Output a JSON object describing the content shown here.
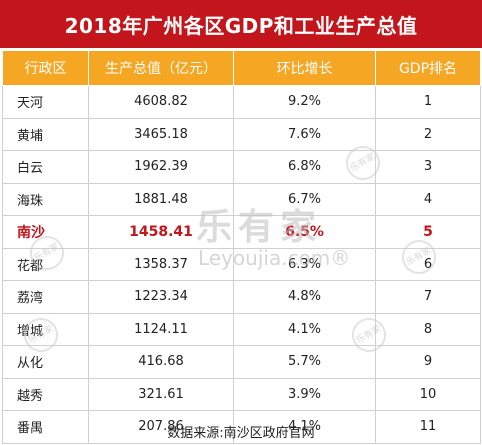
{
  "title": "2018年广州各区GDP和工业生产总值",
  "headers": [
    "行政区",
    "生产总值（亿元）",
    "环比增长",
    "GDP排名"
  ],
  "rows": [
    {
      "district": "天河",
      "gdp": "4608.82",
      "growth": "9.2%",
      "rank": "1"
    },
    {
      "district": "黄埔",
      "gdp": "3465.18",
      "growth": "7.6%",
      "rank": "2"
    },
    {
      "district": "白云",
      "gdp": "1962.39",
      "growth": "6.8%",
      "rank": "3"
    },
    {
      "district": "海珠",
      "gdp": "1881.48",
      "growth": "6.7%",
      "rank": "4"
    },
    {
      "district": "南沙",
      "gdp": "1458.41",
      "growth": "6.5%",
      "rank": "5"
    },
    {
      "district": "花都",
      "gdp": "1358.37",
      "growth": "6.3%",
      "rank": "6"
    },
    {
      "district": "荔湾",
      "gdp": "1223.34",
      "growth": "4.8%",
      "rank": "7"
    },
    {
      "district": "增城",
      "gdp": "1124.11",
      "growth": "4.1%",
      "rank": "8"
    },
    {
      "district": "从化",
      "gdp": "416.68",
      "growth": "5.7%",
      "rank": "9"
    },
    {
      "district": "越秀",
      "gdp": "321.61",
      "growth": "3.9%",
      "rank": "10"
    },
    {
      "district": "番禺",
      "gdp": "207.86",
      "growth": "4.1%",
      "rank": "11"
    }
  ],
  "highlight_row": 4,
  "source": "数据来源:南沙区政府官网",
  "watermark": {
    "main": "乐有家",
    "sub": "Leyoujia.com®",
    "seal": "乐有家"
  },
  "colors": {
    "title_bg": "#c3161c",
    "header_bg": "#f5a623",
    "highlight_text": "#c3161c"
  }
}
